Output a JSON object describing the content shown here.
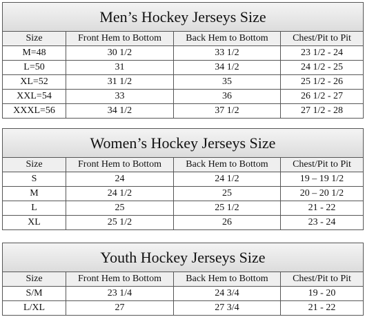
{
  "tables": [
    {
      "title": "Men’s Hockey Jerseys Size",
      "header": [
        "Size",
        "Front Hem to Bottom",
        "Back Hem to Bottom",
        "Chest/Pit to Pit"
      ],
      "rows": [
        [
          "M=48",
          "30 1/2",
          "33 1/2",
          "23 1/2 - 24"
        ],
        [
          "L=50",
          "31",
          "34 1/2",
          "24 1/2 - 25"
        ],
        [
          "XL=52",
          "31 1/2",
          "35",
          "25 1/2 - 26"
        ],
        [
          "XXL=54",
          "33",
          "36",
          "26 1/2 - 27"
        ],
        [
          "XXXL=56",
          "34 1/2",
          "37 1/2",
          "27 1/2 - 28"
        ]
      ]
    },
    {
      "title": "Women’s Hockey Jerseys Size",
      "header": [
        "Size",
        "Front Hem to Bottom",
        "Back Hem to Bottom",
        "Chest/Pit to Pit"
      ],
      "rows": [
        [
          "S",
          "24",
          "24 1/2",
          "19 – 19 1/2"
        ],
        [
          "M",
          "24 1/2",
          "25",
          "20 – 20 1/2"
        ],
        [
          "L",
          "25",
          "25 1/2",
          "21 - 22"
        ],
        [
          "XL",
          "25 1/2",
          "26",
          "23 - 24"
        ]
      ]
    },
    {
      "title": "Youth Hockey Jerseys Size",
      "header": [
        "Size",
        "Front Hem to Bottom",
        "Back Hem to Bottom",
        "Chest/Pit to Pit"
      ],
      "rows": [
        [
          "S/M",
          "23 1/4",
          "24 3/4",
          "19 - 20"
        ],
        [
          "L/XL",
          "27",
          "27 3/4",
          "21 - 22"
        ]
      ]
    }
  ]
}
